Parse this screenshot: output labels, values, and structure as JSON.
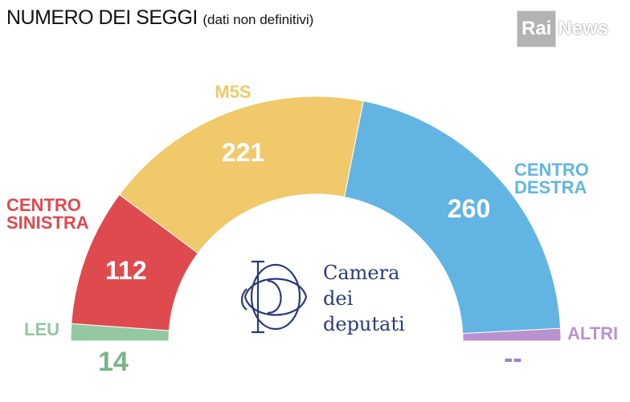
{
  "title": "NUMERO DEI SEGGI",
  "subtitle": "(dati non definitivi)",
  "logo": {
    "part1": "Rai",
    "part2": "News"
  },
  "center_text": [
    "Camera",
    "dei",
    "deputati"
  ],
  "colors": {
    "centrosinistra": "#df4a4f",
    "m5s": "#f0c96b",
    "centrodestra": "#62b5e2",
    "leu": "#93c8a1",
    "altri": "#bb92d0",
    "camera": "#2b3a7a"
  },
  "chart_data": {
    "type": "pie",
    "subtype": "semicircle",
    "title": "NUMERO DEI SEGGI",
    "subtitle": "(dati non definitivi)",
    "series": [
      {
        "name": "LEU",
        "label_lines": [
          "LEU"
        ],
        "value": 14,
        "display_value": "14",
        "color": "#93c8a1"
      },
      {
        "name": "CENTRO SINISTRA",
        "label_lines": [
          "CENTRO",
          "SINISTRA"
        ],
        "value": 112,
        "display_value": "112",
        "color": "#df4a4f"
      },
      {
        "name": "M5S",
        "label_lines": [
          "M5S"
        ],
        "value": 221,
        "display_value": "221",
        "color": "#f0c96b"
      },
      {
        "name": "CENTRO DESTRA",
        "label_lines": [
          "CENTRO",
          "DESTRA"
        ],
        "value": 260,
        "display_value": "260",
        "color": "#62b5e2"
      },
      {
        "name": "ALTRI",
        "label_lines": [
          "ALTRI"
        ],
        "value": 0,
        "display_value": "--",
        "color": "#bb92d0"
      }
    ]
  }
}
